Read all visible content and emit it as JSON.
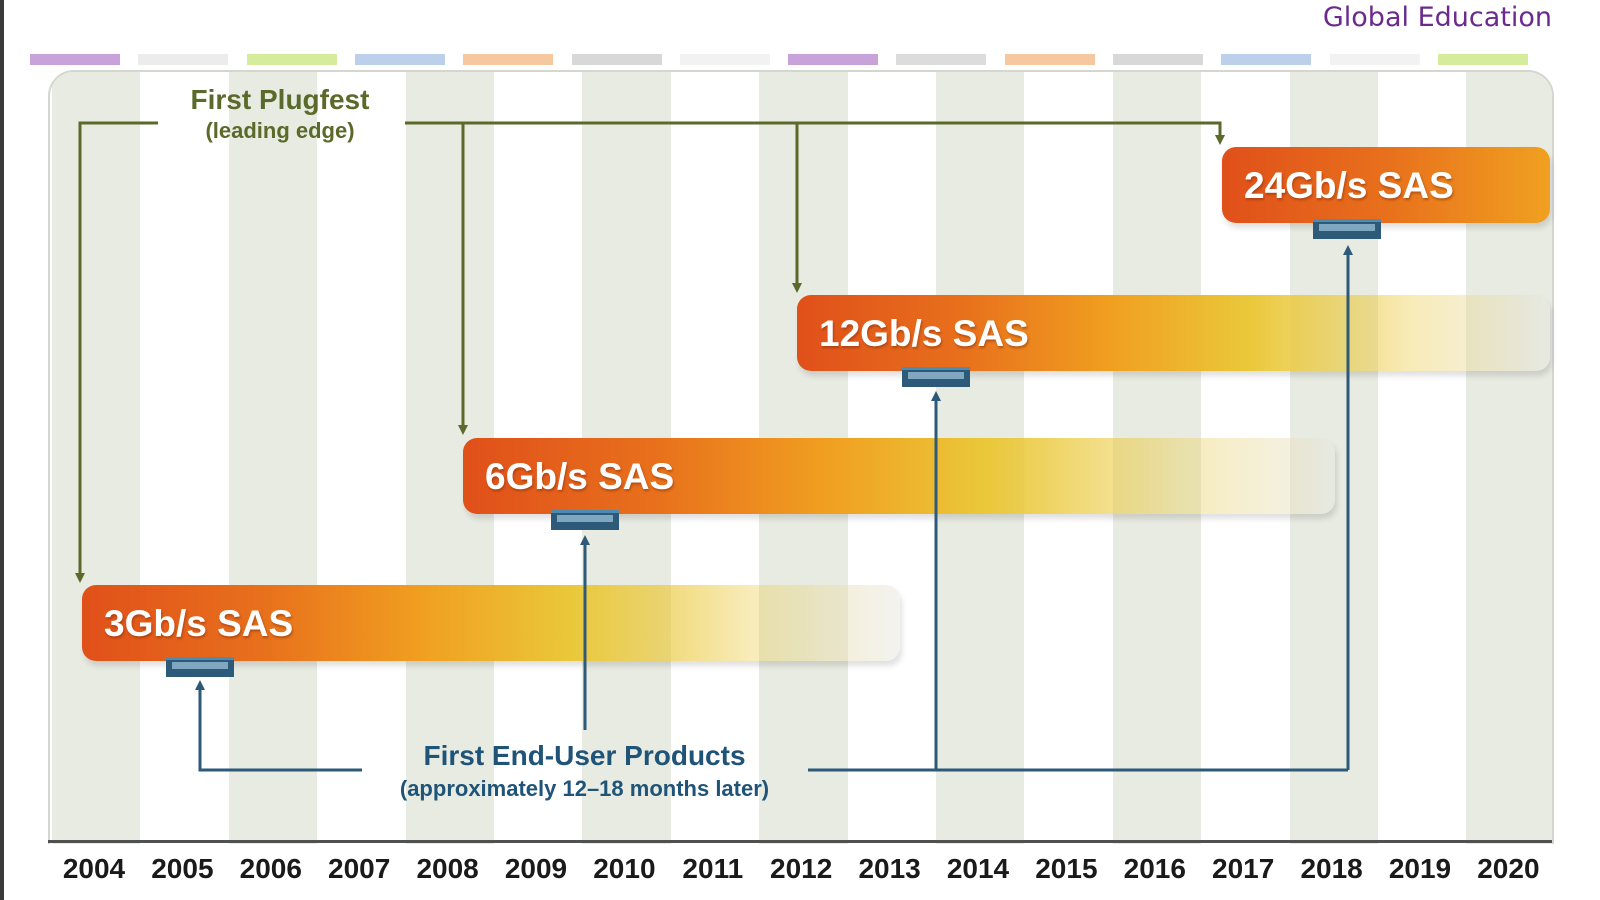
{
  "brand": "Global Education",
  "colors": {
    "plugfest_arrow": "#5a6a2a",
    "product_arrow": "#2c5a78",
    "bar_start": "#e0501a",
    "bar_mid": "#f0a020",
    "bar_fade": "#eac83a",
    "brand_text": "#6b2a8c"
  },
  "strip_colors": [
    "#c8a2d8",
    "#ececec",
    "#d4ec9c",
    "#bcd0ec",
    "#f6c8a0",
    "#d8d8d8",
    "#f2f2f2",
    "#c8a2d8",
    "#dcdcdc",
    "#f6c8a0",
    "#d8d8d8",
    "#bcd0ec",
    "#f2f2f2",
    "#d4ec9c"
  ],
  "years": [
    "2004",
    "2005",
    "2006",
    "2007",
    "2008",
    "2009",
    "2010",
    "2011",
    "2012",
    "2013",
    "2014",
    "2015",
    "2016",
    "2017",
    "2018",
    "2019",
    "2020"
  ],
  "plugfest": {
    "title": "First Plugfest",
    "subtitle": "(leading edge)"
  },
  "products": {
    "title": "First End-User Products",
    "subtitle": "(approximately 12–18 months later)"
  },
  "generations": [
    {
      "label": "3Gb/s SAS",
      "plugfest_year": 2004,
      "product_year": 2005,
      "fade_until": 2013.3
    },
    {
      "label": "6Gb/s SAS",
      "plugfest_year": 2008,
      "product_year": 2009,
      "fade_until": 2017.7
    },
    {
      "label": "12Gb/s SAS",
      "plugfest_year": 2012,
      "product_year": 2013,
      "fade_until": 2020.9
    },
    {
      "label": "24Gb/s SAS",
      "plugfest_year": 2017,
      "product_year": 2018,
      "fade_until": 2020.9
    }
  ]
}
